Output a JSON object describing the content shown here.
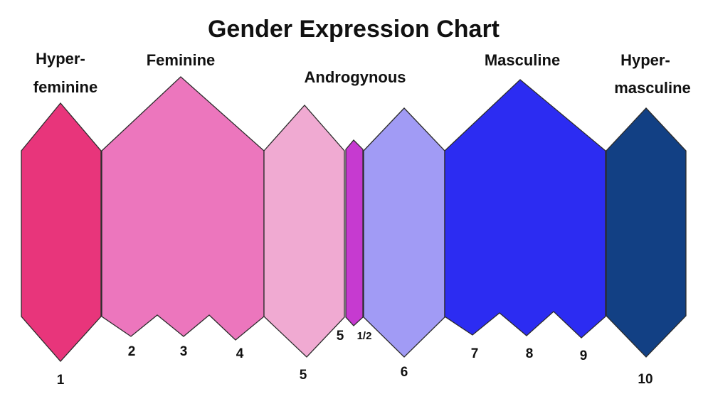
{
  "title": "Gender Expression Chart",
  "categories": [
    {
      "key": "hyper_feminine",
      "lines": [
        "Hyper-",
        "feminine"
      ]
    },
    {
      "key": "feminine",
      "lines": [
        "Feminine"
      ]
    },
    {
      "key": "androgynous",
      "lines": [
        "Androgynous"
      ]
    },
    {
      "key": "masculine",
      "lines": [
        "Masculine"
      ]
    },
    {
      "key": "hyper_masculine",
      "lines": [
        "Hyper-",
        "masculine"
      ]
    }
  ],
  "segments": [
    {
      "key": "hyper_feminine",
      "color": "#e8357b"
    },
    {
      "key": "feminine",
      "color": "#ec76bd"
    },
    {
      "key": "androgynous_feminine",
      "color": "#f0aad2"
    },
    {
      "key": "androgynous_center",
      "color": "#c63ad0"
    },
    {
      "key": "androgynous_masculine",
      "color": "#a19bf5"
    },
    {
      "key": "masculine",
      "color": "#2c2cf2"
    },
    {
      "key": "hyper_masculine",
      "color": "#124084"
    }
  ],
  "scale_labels": [
    "1",
    "2",
    "3",
    "4",
    "5",
    "5",
    "1/2",
    "6",
    "7",
    "8",
    "9",
    "10"
  ]
}
